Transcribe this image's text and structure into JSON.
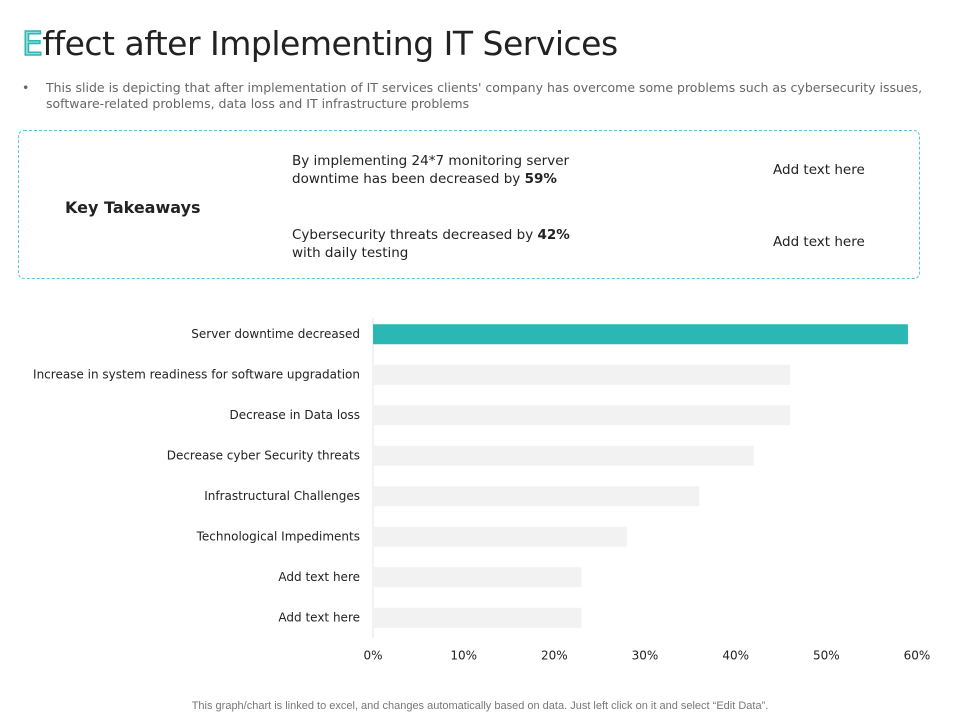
{
  "header": {
    "title": "Effect after Implementing IT Services",
    "description": "This slide is depicting that after implementation of IT services clients' company has overcome some problems such as cybersecurity issues, software-related problems, data loss and IT infrastructure problems"
  },
  "takeaways": {
    "heading": "Key Takeaways",
    "items": [
      {
        "runs": [
          "By implementing 24*7 monitoring server downtime has been decreased by ",
          "59%"
        ],
        "note": "Add text here"
      },
      {
        "runs": [
          "Cybersecurity threats decreased by ",
          "42%",
          " with daily testing"
        ],
        "note": "Add text here"
      }
    ]
  },
  "chart_data": {
    "type": "bar",
    "orientation": "horizontal",
    "categories": [
      "Server downtime decreased",
      "Increase in system readiness for software upgradation",
      "Decrease in Data loss",
      "Decrease cyber Security threats",
      "Infrastructural Challenges",
      "Technological Impediments",
      "Add text here",
      "Add text here"
    ],
    "values": [
      59,
      46,
      46,
      42,
      36,
      28,
      23,
      23
    ],
    "colors": [
      "#2bb7b3",
      "#f2f2f2",
      "#f2f2f2",
      "#f2f2f2",
      "#f2f2f2",
      "#f2f2f2",
      "#f2f2f2",
      "#f2f2f2"
    ],
    "xlim": [
      0,
      60
    ],
    "xticks": [
      {
        "value": 0,
        "label": "0%"
      },
      {
        "value": 10,
        "label": "10%"
      },
      {
        "value": 20,
        "label": "20%"
      },
      {
        "value": 30,
        "label": "30%"
      },
      {
        "value": 40,
        "label": "40%"
      },
      {
        "value": 50,
        "label": "50%"
      },
      {
        "value": 60,
        "label": "60%"
      }
    ]
  },
  "footer": "This graph/chart is linked to excel, and changes automatically based on data. Just left click on it and select “Edit Data”."
}
